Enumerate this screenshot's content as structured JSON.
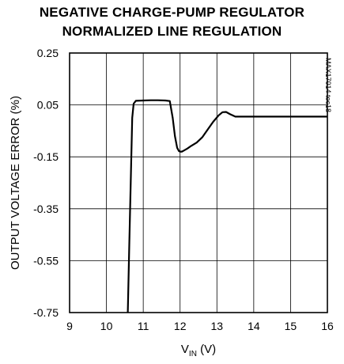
{
  "chart_data": {
    "type": "line",
    "title_lines": [
      "NEGATIVE CHARGE-PUMP REGULATOR",
      "NORMALIZED LINE REGULATION"
    ],
    "xlabel": {
      "main": "V",
      "sub": "IN",
      "unit": " (V)"
    },
    "ylabel": "OUTPUT VOLTAGE ERROR (%)",
    "part_number": "MAX17014 toc18",
    "xlim": [
      9,
      16
    ],
    "ylim": [
      -0.75,
      0.25
    ],
    "x_ticks": [
      "9",
      "10",
      "11",
      "12",
      "13",
      "14",
      "15",
      "16"
    ],
    "y_ticks": [
      "0.25",
      "0.05",
      "-0.15",
      "-0.35",
      "-0.55",
      "-0.75"
    ],
    "y_tick_values": [
      0.25,
      0.05,
      -0.15,
      -0.35,
      -0.55,
      -0.75
    ],
    "grid": true,
    "series": [
      {
        "x": [
          10.58,
          10.62,
          10.66,
          10.7,
          10.74,
          10.8,
          11.0,
          11.2,
          11.4,
          11.6,
          11.72,
          11.8,
          11.86,
          11.92,
          11.97,
          12.0,
          12.05,
          12.1,
          12.2,
          12.3,
          12.45,
          12.6,
          12.75,
          12.9,
          13.05,
          13.15,
          13.25,
          13.35,
          13.5,
          13.7,
          14.0,
          15.0,
          16.0
        ],
        "y": [
          -0.75,
          -0.5,
          -0.25,
          0.0,
          0.055,
          0.066,
          0.067,
          0.068,
          0.068,
          0.067,
          0.065,
          0.0,
          -0.07,
          -0.115,
          -0.128,
          -0.13,
          -0.13,
          -0.126,
          -0.118,
          -0.108,
          -0.095,
          -0.075,
          -0.045,
          -0.015,
          0.01,
          0.022,
          0.023,
          0.015,
          0.005,
          0.005,
          0.005,
          0.005,
          0.005
        ]
      }
    ]
  }
}
